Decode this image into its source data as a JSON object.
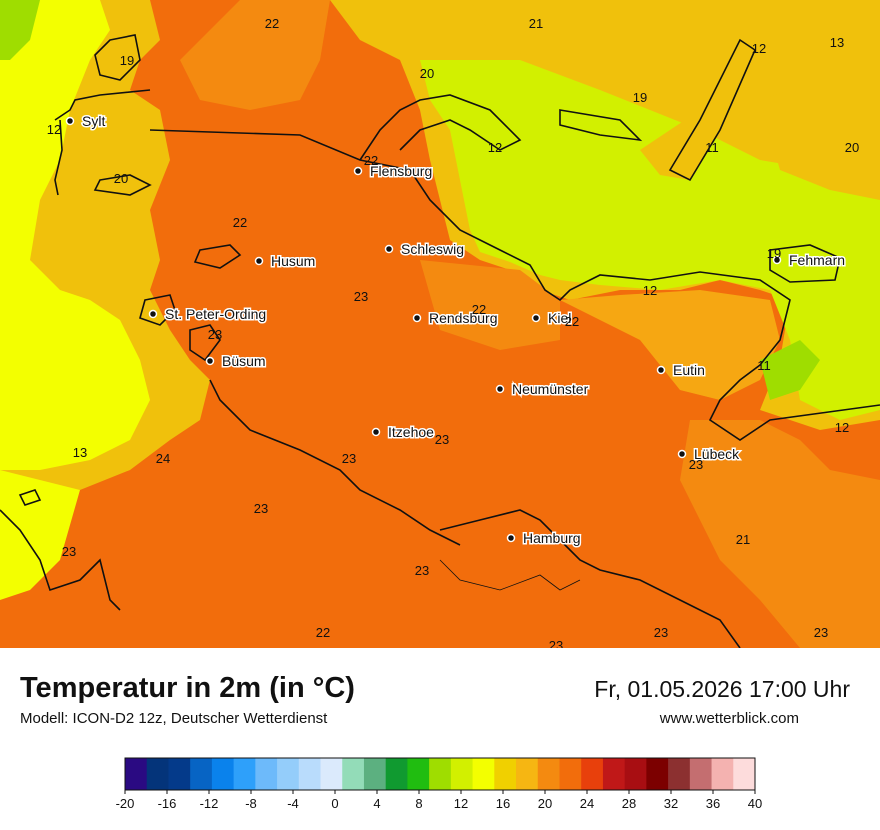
{
  "map": {
    "title": "Temperatur in 2m (in °C)",
    "model": "Modell: ICON-D2 12z, Deutscher Wetterdienst",
    "datetime": "Fr, 01.05.2026 17:00 Uhr",
    "website": "www.wetterblick.com",
    "cities": [
      {
        "name": "Sylt"
      },
      {
        "name": "Flensburg"
      },
      {
        "name": "Schleswig"
      },
      {
        "name": "Husum"
      },
      {
        "name": "St. Peter-Ording"
      },
      {
        "name": "Rendsburg"
      },
      {
        "name": "Kiel"
      },
      {
        "name": "Büsum"
      },
      {
        "name": "Neumünster"
      },
      {
        "name": "Eutin"
      },
      {
        "name": "Fehmarn"
      },
      {
        "name": "Itzehoe"
      },
      {
        "name": "Lübeck"
      },
      {
        "name": "Hamburg"
      }
    ],
    "temperature_labels": [
      "22",
      "21",
      "19",
      "20",
      "12",
      "13",
      "12",
      "19",
      "12",
      "11",
      "20",
      "22",
      "22",
      "19",
      "20",
      "12",
      "23",
      "22",
      "22",
      "23",
      "11",
      "13",
      "24",
      "23",
      "12",
      "23",
      "23",
      "23",
      "21",
      "23",
      "23",
      "22",
      "23",
      "23"
    ]
  },
  "colors": {
    "land_hot": "#f26d0c",
    "land_warm": "#f48a10",
    "orange_light": "#f6a712",
    "yellow_orange": "#f0c10c",
    "yellow": "#f3ff00",
    "sea_green": "#d2f000",
    "green": "#9fdd00"
  },
  "legend": {
    "ticks": [
      "-20",
      "-16",
      "-12",
      "-8",
      "-4",
      "0",
      "4",
      "8",
      "12",
      "16",
      "20",
      "24",
      "28",
      "32",
      "36",
      "40"
    ],
    "colors": [
      "#2a0a82",
      "#04347a",
      "#043a8a",
      "#0764c4",
      "#0a82ec",
      "#2ea0fa",
      "#6dbafa",
      "#94cdfa",
      "#b9dcfc",
      "#dbeafc",
      "#93dcb8",
      "#5cb080",
      "#109a30",
      "#20bd10",
      "#9fdd00",
      "#d2f000",
      "#f3ff00",
      "#f0d000",
      "#f6b612",
      "#f48a10",
      "#f26d0c",
      "#e8400c",
      "#c01818",
      "#a80e12",
      "#7c0000",
      "#8c3030",
      "#c46e70",
      "#f4b2b0",
      "#fddcdc"
    ]
  }
}
